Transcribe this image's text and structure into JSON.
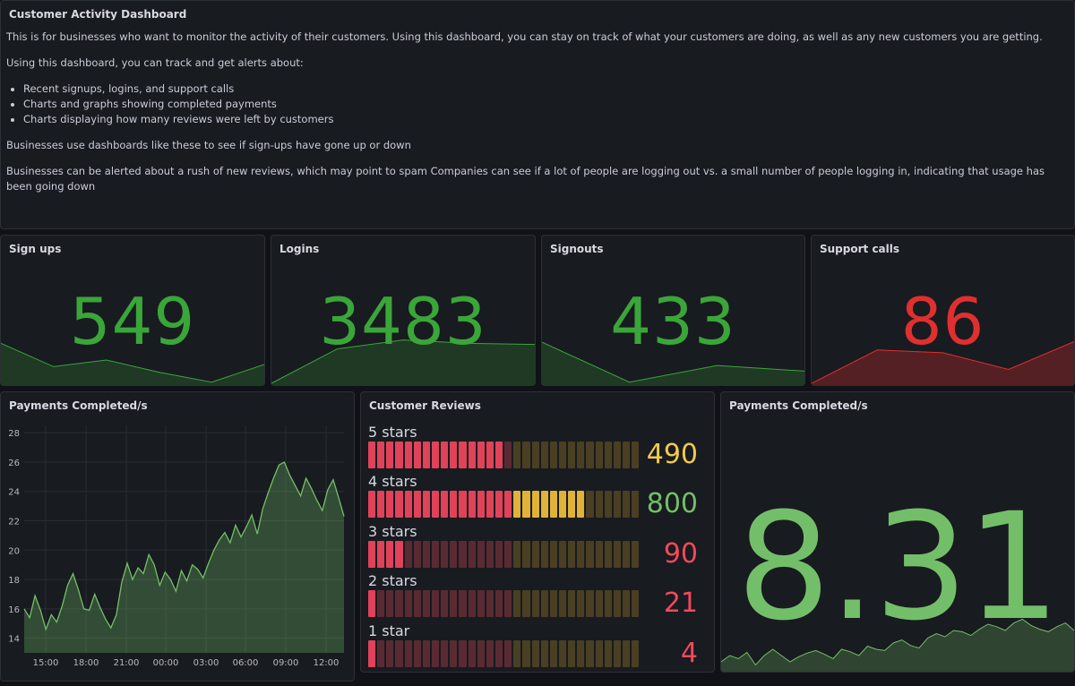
{
  "text_panel": {
    "title": "Customer Activity Dashboard",
    "intro": "This is for businesses who want to monitor the activity of their customers. Using this dashboard, you can stay on track of what your customers are doing, as well as any new customers you are getting.",
    "lead": "Using this dashboard, you can track and get alerts about:",
    "bullets": [
      "Recent signups, logins, and support calls",
      "Charts and graphs showing completed payments",
      "Charts displaying how many reviews were left by customers"
    ],
    "para2": "Businesses use dashboards like these to see if sign-ups have gone up or down",
    "para3": "Businesses can be alerted about a rush of new reviews, which may point to spam Companies can see if a lot of people are logging out vs. a small number of people logging in, indicating that usage has been going down"
  },
  "stats": [
    {
      "title": "Sign ups",
      "value": "549",
      "color": "#3aa639",
      "spark": [
        0.72,
        0.3,
        0.42,
        0.2,
        0.02,
        0.34
      ]
    },
    {
      "title": "Logins",
      "value": "3483",
      "color": "#3aa639",
      "spark": [
        0.0,
        0.62,
        0.78,
        0.72,
        0.7
      ]
    },
    {
      "title": "Signouts",
      "value": "433",
      "color": "#3aa639",
      "spark": [
        0.74,
        0.02,
        0.32,
        0.22
      ]
    },
    {
      "title": "Support calls",
      "value": "86",
      "color": "#e02f2f",
      "spark": [
        0.0,
        0.6,
        0.55,
        0.25,
        0.75
      ]
    }
  ],
  "payments_chart": {
    "title": "Payments Completed/s",
    "chart_data": {
      "type": "area",
      "x_ticks": [
        "15:00",
        "18:00",
        "21:00",
        "00:00",
        "03:00",
        "06:00",
        "09:00",
        "12:00"
      ],
      "y_ticks": [
        "28",
        "26",
        "24",
        "22",
        "20",
        "18",
        "16",
        "14"
      ],
      "ylim": [
        13,
        28.5
      ],
      "series": [
        {
          "color": "#73bf69",
          "values": [
            16.0,
            15.4,
            16.9,
            15.9,
            14.6,
            15.6,
            15.1,
            16.2,
            17.6,
            18.4,
            17.3,
            16.0,
            15.9,
            17.0,
            16.1,
            15.3,
            14.7,
            15.6,
            17.8,
            19.1,
            18.0,
            18.8,
            18.4,
            19.7,
            19.0,
            17.6,
            18.5,
            18.0,
            17.2,
            18.6,
            17.9,
            19.0,
            18.7,
            18.1,
            19.1,
            20.0,
            20.7,
            21.2,
            20.5,
            21.7,
            20.9,
            21.6,
            22.4,
            21.1,
            22.8,
            23.9,
            24.9,
            25.8,
            26.0,
            25.1,
            24.4,
            23.7,
            24.9,
            24.2,
            23.4,
            22.7,
            24.1,
            24.8,
            23.6,
            22.3
          ]
        }
      ]
    }
  },
  "reviews": {
    "title": "Customer Reviews",
    "max": 800,
    "items": [
      {
        "label": "5 stars",
        "value": "490",
        "num": 490,
        "color": "#f2c94c",
        "cells": 15
      },
      {
        "label": "4 stars",
        "value": "800",
        "num": 800,
        "color": "#73bf69",
        "cells": 24
      },
      {
        "label": "3 stars",
        "value": "90",
        "num": 90,
        "color": "#f2495c",
        "cells": 4
      },
      {
        "label": "2 stars",
        "value": "21",
        "num": 21,
        "color": "#f2495c",
        "cells": 1
      },
      {
        "label": "1 star",
        "value": "4",
        "num": 4,
        "color": "#f2495c",
        "cells": 1
      }
    ]
  },
  "payments_stat": {
    "title": "Payments Completed/s",
    "value": "8.31",
    "color": "#73bf69",
    "spark": [
      0.1,
      0.2,
      0.15,
      0.25,
      0.05,
      0.2,
      0.3,
      0.2,
      0.1,
      0.18,
      0.24,
      0.28,
      0.22,
      0.15,
      0.3,
      0.26,
      0.2,
      0.35,
      0.3,
      0.28,
      0.4,
      0.45,
      0.36,
      0.32,
      0.48,
      0.55,
      0.5,
      0.6,
      0.58,
      0.52,
      0.62,
      0.7,
      0.66,
      0.6,
      0.72,
      0.78,
      0.68,
      0.62,
      0.58,
      0.66,
      0.72,
      0.6
    ]
  }
}
